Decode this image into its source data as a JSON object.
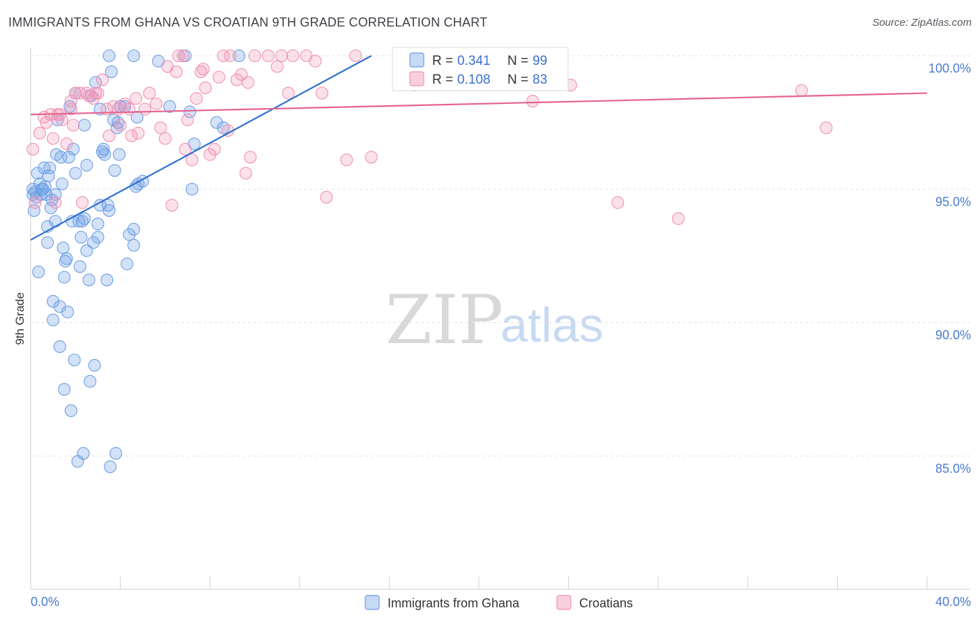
{
  "title": "IMMIGRANTS FROM GHANA VS CROATIAN 9TH GRADE CORRELATION CHART",
  "source": "Source: ZipAtlas.com",
  "watermark": {
    "part1": "ZIP",
    "part2": "atlas"
  },
  "legend": {
    "r_label": "R =",
    "n_label": "N =",
    "ghana": {
      "r": "0.341",
      "n": "99"
    },
    "croatians": {
      "r": "0.108",
      "n": "83"
    }
  },
  "chart_data": {
    "type": "scatter",
    "title": "IMMIGRANTS FROM GHANA VS CROATIAN 9TH GRADE CORRELATION CHART",
    "xlabel": "",
    "ylabel": "9th Grade",
    "xlim": [
      0,
      40
    ],
    "ylim": [
      80.5,
      100.8
    ],
    "x_tick_labels": [
      "0.0%",
      "40.0%"
    ],
    "y_ticks": [
      85,
      90,
      95,
      100
    ],
    "y_tick_labels": [
      "85.0%",
      "90.0%",
      "95.0%",
      "100.0%"
    ],
    "grid": true,
    "legend_position": "top-center",
    "colors": {
      "ghana": "#6d9fe6",
      "croatians": "#f092b3",
      "ghana_line": "#2f6fd0",
      "croatians_line": "#e5638f"
    },
    "series": [
      {
        "name": "Immigrants from Ghana",
        "r": 0.341,
        "n": 99,
        "trend": {
          "x": [
            0,
            15.2
          ],
          "y": [
            93.1,
            100.0
          ]
        },
        "points": [
          [
            0.1,
            94.8
          ],
          [
            0.1,
            95.0
          ],
          [
            0.15,
            94.2
          ],
          [
            0.2,
            94.9
          ],
          [
            0.25,
            94.7
          ],
          [
            0.3,
            95.6
          ],
          [
            0.35,
            91.9
          ],
          [
            0.4,
            95.2
          ],
          [
            0.45,
            94.8
          ],
          [
            0.5,
            95.0
          ],
          [
            0.55,
            95.0
          ],
          [
            0.6,
            95.8
          ],
          [
            0.65,
            95.1
          ],
          [
            0.7,
            94.8
          ],
          [
            0.75,
            93.0
          ],
          [
            0.75,
            93.6
          ],
          [
            0.8,
            95.5
          ],
          [
            0.85,
            95.8
          ],
          [
            0.9,
            94.3
          ],
          [
            0.95,
            94.6
          ],
          [
            1.0,
            90.8
          ],
          [
            1.0,
            90.1
          ],
          [
            1.1,
            94.8
          ],
          [
            1.1,
            93.8
          ],
          [
            1.15,
            96.3
          ],
          [
            1.2,
            97.6
          ],
          [
            1.3,
            90.6
          ],
          [
            1.3,
            89.1
          ],
          [
            1.35,
            96.2
          ],
          [
            1.4,
            95.2
          ],
          [
            1.45,
            92.8
          ],
          [
            1.5,
            91.7
          ],
          [
            1.5,
            87.5
          ],
          [
            1.55,
            92.3
          ],
          [
            1.6,
            92.4
          ],
          [
            1.65,
            90.4
          ],
          [
            1.7,
            96.2
          ],
          [
            1.75,
            98.1
          ],
          [
            1.8,
            86.7
          ],
          [
            1.85,
            93.8
          ],
          [
            1.9,
            96.5
          ],
          [
            1.95,
            88.6
          ],
          [
            2.0,
            98.6
          ],
          [
            2.0,
            95.6
          ],
          [
            2.1,
            84.8
          ],
          [
            2.15,
            93.8
          ],
          [
            2.2,
            92.1
          ],
          [
            2.25,
            93.2
          ],
          [
            2.3,
            93.8
          ],
          [
            2.35,
            85.1
          ],
          [
            2.4,
            93.9
          ],
          [
            2.4,
            97.4
          ],
          [
            2.5,
            92.7
          ],
          [
            2.5,
            95.9
          ],
          [
            2.6,
            91.6
          ],
          [
            2.65,
            87.8
          ],
          [
            2.7,
            98.5
          ],
          [
            2.8,
            93.0
          ],
          [
            2.85,
            88.4
          ],
          [
            2.9,
            99.0
          ],
          [
            3.0,
            93.2
          ],
          [
            3.0,
            93.7
          ],
          [
            3.1,
            94.4
          ],
          [
            3.2,
            96.4
          ],
          [
            3.25,
            96.5
          ],
          [
            3.3,
            96.3
          ],
          [
            3.4,
            91.6
          ],
          [
            3.45,
            94.4
          ],
          [
            3.5,
            94.2
          ],
          [
            3.5,
            100.0
          ],
          [
            3.55,
            84.6
          ],
          [
            3.6,
            99.4
          ],
          [
            3.7,
            97.6
          ],
          [
            3.75,
            95.7
          ],
          [
            3.8,
            85.1
          ],
          [
            3.85,
            97.3
          ],
          [
            3.9,
            97.5
          ],
          [
            3.95,
            96.3
          ],
          [
            4.0,
            98.1
          ],
          [
            4.2,
            98.1
          ],
          [
            4.3,
            92.2
          ],
          [
            4.4,
            93.3
          ],
          [
            4.6,
            92.9
          ],
          [
            4.6,
            93.5
          ],
          [
            4.6,
            100.0
          ],
          [
            4.7,
            95.1
          ],
          [
            4.75,
            97.7
          ],
          [
            4.8,
            95.2
          ],
          [
            5.0,
            95.3
          ],
          [
            5.7,
            99.8
          ],
          [
            6.2,
            98.1
          ],
          [
            7.1,
            97.9
          ],
          [
            7.3,
            96.7
          ],
          [
            7.2,
            95.0
          ],
          [
            6.9,
            100.0
          ],
          [
            8.3,
            97.5
          ],
          [
            8.6,
            97.3
          ],
          [
            9.3,
            100.0
          ],
          [
            3.1,
            98.0
          ]
        ]
      },
      {
        "name": "Croatians",
        "r": 0.108,
        "n": 83,
        "trend": {
          "x": [
            0,
            40
          ],
          "y": [
            97.8,
            98.6
          ]
        },
        "points": [
          [
            0.1,
            96.5
          ],
          [
            0.2,
            94.5
          ],
          [
            0.4,
            97.1
          ],
          [
            0.6,
            97.7
          ],
          [
            0.7,
            97.5
          ],
          [
            0.9,
            97.8
          ],
          [
            1.0,
            96.9
          ],
          [
            1.1,
            94.5
          ],
          [
            1.2,
            97.8
          ],
          [
            1.3,
            97.8
          ],
          [
            1.4,
            97.6
          ],
          [
            1.6,
            96.7
          ],
          [
            1.8,
            98.0
          ],
          [
            1.8,
            98.3
          ],
          [
            1.9,
            97.4
          ],
          [
            2.0,
            98.6
          ],
          [
            2.2,
            98.6
          ],
          [
            2.3,
            94.5
          ],
          [
            2.5,
            98.6
          ],
          [
            2.6,
            98.5
          ],
          [
            2.8,
            98.4
          ],
          [
            2.9,
            98.6
          ],
          [
            3.0,
            98.6
          ],
          [
            3.2,
            99.1
          ],
          [
            3.4,
            98.0
          ],
          [
            3.5,
            97.0
          ],
          [
            3.7,
            98.1
          ],
          [
            3.9,
            98.0
          ],
          [
            4.0,
            97.4
          ],
          [
            4.2,
            98.2
          ],
          [
            4.4,
            98.0
          ],
          [
            4.5,
            97.0
          ],
          [
            4.7,
            98.4
          ],
          [
            4.8,
            97.1
          ],
          [
            5.1,
            98.0
          ],
          [
            5.3,
            98.6
          ],
          [
            5.6,
            98.2
          ],
          [
            5.8,
            97.3
          ],
          [
            6.0,
            96.9
          ],
          [
            6.1,
            99.6
          ],
          [
            6.3,
            94.4
          ],
          [
            6.5,
            99.4
          ],
          [
            6.6,
            100.0
          ],
          [
            6.8,
            100.0
          ],
          [
            6.9,
            96.5
          ],
          [
            7.0,
            97.6
          ],
          [
            7.2,
            96.1
          ],
          [
            7.4,
            98.4
          ],
          [
            7.6,
            99.4
          ],
          [
            7.7,
            99.5
          ],
          [
            7.8,
            98.8
          ],
          [
            8.0,
            96.3
          ],
          [
            8.2,
            96.5
          ],
          [
            8.4,
            99.2
          ],
          [
            8.6,
            100.0
          ],
          [
            8.8,
            97.2
          ],
          [
            8.9,
            100.0
          ],
          [
            9.2,
            99.1
          ],
          [
            9.4,
            99.3
          ],
          [
            9.6,
            95.6
          ],
          [
            9.7,
            99.0
          ],
          [
            9.8,
            96.2
          ],
          [
            10.0,
            100.0
          ],
          [
            10.6,
            100.0
          ],
          [
            11.0,
            99.6
          ],
          [
            11.2,
            100.0
          ],
          [
            11.5,
            98.6
          ],
          [
            11.7,
            100.0
          ],
          [
            12.3,
            100.0
          ],
          [
            12.7,
            99.8
          ],
          [
            13.0,
            98.6
          ],
          [
            13.2,
            94.7
          ],
          [
            14.1,
            96.1
          ],
          [
            14.5,
            100.0
          ],
          [
            15.2,
            96.2
          ],
          [
            17.1,
            98.9
          ],
          [
            17.7,
            100.0
          ],
          [
            22.4,
            98.3
          ],
          [
            24.1,
            98.9
          ],
          [
            26.2,
            94.5
          ],
          [
            28.9,
            93.9
          ],
          [
            34.4,
            98.7
          ],
          [
            35.5,
            97.3
          ]
        ]
      }
    ]
  },
  "bottom_legend": [
    "Immigrants from Ghana",
    "Croatians"
  ]
}
